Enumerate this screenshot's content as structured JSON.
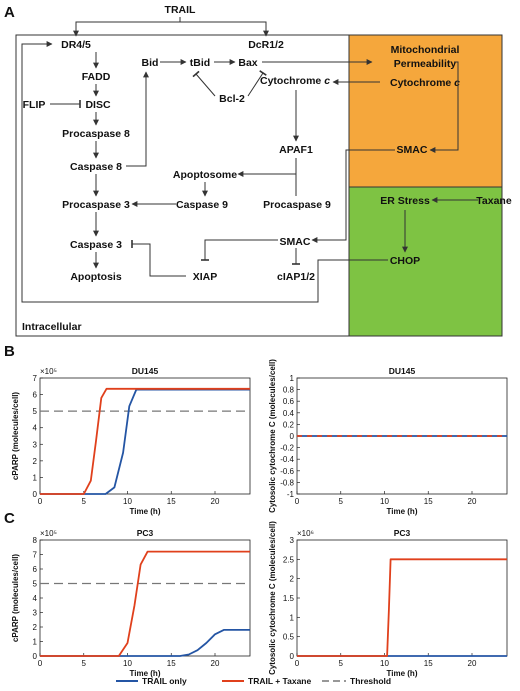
{
  "panels": {
    "a": "A",
    "b": "B",
    "c": "C"
  },
  "diagram": {
    "trail": "TRAIL",
    "dr45": "DR4/5",
    "dcr12": "DcR1/2",
    "fadd": "FADD",
    "flip": "FLIP",
    "disc": "DISC",
    "procaspase8": "Procaspase 8",
    "caspase8": "Caspase 8",
    "procaspase3": "Procaspase 3",
    "caspase3": "Caspase 3",
    "apoptosis": "Apoptosis",
    "bid": "Bid",
    "tbid": "tBid",
    "bax": "Bax",
    "bcl2": "Bcl-2",
    "cytc_prefix": "Cytochrome ",
    "cytc_italic": "c",
    "apaf1": "APAF1",
    "apoptosome": "Apoptosome",
    "caspase9": "Caspase 9",
    "procaspase9": "Procaspase 9",
    "smac": "SMAC",
    "xiap": "XIAP",
    "ciap": "cIAP1/2",
    "chop": "CHOP",
    "er_stress": "ER Stress",
    "taxane": "Taxane",
    "mito_line1": "Mitochondrial",
    "mito_line2": "Permeability",
    "intracellular": "Intracellular",
    "colors": {
      "mito": "#f5a73c",
      "er": "#7ec343",
      "line": "#333333"
    }
  },
  "chart_data": [
    {
      "type": "line",
      "title": "DU145",
      "xlabel": "Time (h)",
      "ylabel": "cPARP (molecules/cell)",
      "exponent": "×10⁵",
      "xlim": [
        0,
        24
      ],
      "ylim": [
        0,
        7
      ],
      "xticks": [
        "0",
        "5",
        "10",
        "15",
        "20"
      ],
      "yticks": [
        "0",
        "1",
        "2",
        "3",
        "4",
        "5",
        "6",
        "7"
      ],
      "threshold": 5,
      "series": [
        {
          "name": "TRAIL only",
          "color": "#2455a4",
          "x": [
            0,
            7.5,
            8.5,
            9.5,
            10.2,
            11,
            24
          ],
          "y": [
            0,
            0,
            0.4,
            2.5,
            5.3,
            6.3,
            6.3
          ]
        },
        {
          "name": "TRAIL + Taxane",
          "color": "#e0401c",
          "x": [
            0,
            5,
            5.8,
            6.4,
            7,
            7.6,
            24
          ],
          "y": [
            0,
            0,
            0.8,
            3.2,
            5.8,
            6.35,
            6.35
          ]
        }
      ]
    },
    {
      "type": "line",
      "title": "DU145",
      "xlabel": "Time (h)",
      "ylabel": "Cytosolic cytochrome C (molecules/cell)",
      "xlim": [
        0,
        24
      ],
      "ylim": [
        -1,
        1
      ],
      "xticks": [
        "0",
        "5",
        "10",
        "15",
        "20"
      ],
      "yticks": [
        "-1",
        "-0.8",
        "-0.6",
        "-0.4",
        "-0.2",
        "0",
        "0.2",
        "0.4",
        "0.6",
        "0.8",
        "1"
      ],
      "series": [
        {
          "name": "TRAIL only",
          "color": "#2455a4",
          "x": [
            0,
            24
          ],
          "y": [
            0,
            0
          ]
        },
        {
          "name": "TRAIL + Taxane",
          "color": "#e0401c",
          "x": [
            0,
            24
          ],
          "y": [
            0,
            0
          ]
        }
      ]
    },
    {
      "type": "line",
      "title": "PC3",
      "xlabel": "Time (h)",
      "ylabel": "cPARP (molecules/cell)",
      "exponent": "×10⁵",
      "xlim": [
        0,
        24
      ],
      "ylim": [
        0,
        8
      ],
      "xticks": [
        "0",
        "5",
        "10",
        "15",
        "20"
      ],
      "yticks": [
        "0",
        "1",
        "2",
        "3",
        "4",
        "5",
        "6",
        "7",
        "8"
      ],
      "threshold": 5,
      "series": [
        {
          "name": "TRAIL only",
          "color": "#2455a4",
          "x": [
            0,
            16,
            17,
            18,
            19,
            20,
            21,
            24
          ],
          "y": [
            0,
            0,
            0.1,
            0.4,
            0.9,
            1.5,
            1.8,
            1.8
          ]
        },
        {
          "name": "TRAIL + Taxane",
          "color": "#e0401c",
          "x": [
            0,
            9,
            10,
            10.8,
            11.5,
            12.3,
            24
          ],
          "y": [
            0,
            0,
            0.9,
            3.5,
            6.3,
            7.2,
            7.2
          ]
        }
      ]
    },
    {
      "type": "line",
      "title": "PC3",
      "xlabel": "Time (h)",
      "ylabel": "Cytosolic cytochrome C (molecules/cell)",
      "exponent": "×10⁶",
      "xlim": [
        0,
        24
      ],
      "ylim": [
        0,
        3
      ],
      "xticks": [
        "0",
        "5",
        "10",
        "15",
        "20"
      ],
      "yticks": [
        "0",
        "0.5",
        "1",
        "1.5",
        "2",
        "2.5",
        "3"
      ],
      "series": [
        {
          "name": "TRAIL only",
          "color": "#2455a4",
          "x": [
            0,
            24
          ],
          "y": [
            0,
            0
          ]
        },
        {
          "name": "TRAIL + Taxane",
          "color": "#e0401c",
          "x": [
            0,
            10.3,
            10.5,
            10.7,
            24
          ],
          "y": [
            0,
            0,
            1.2,
            2.5,
            2.5
          ]
        }
      ]
    }
  ],
  "legend": {
    "trail_only": "TRAIL only",
    "trail_taxane": "TRAIL + Taxane",
    "threshold": "Threshold",
    "colors": {
      "trail_only": "#2455a4",
      "trail_taxane": "#e0401c",
      "threshold": "#777777"
    }
  }
}
